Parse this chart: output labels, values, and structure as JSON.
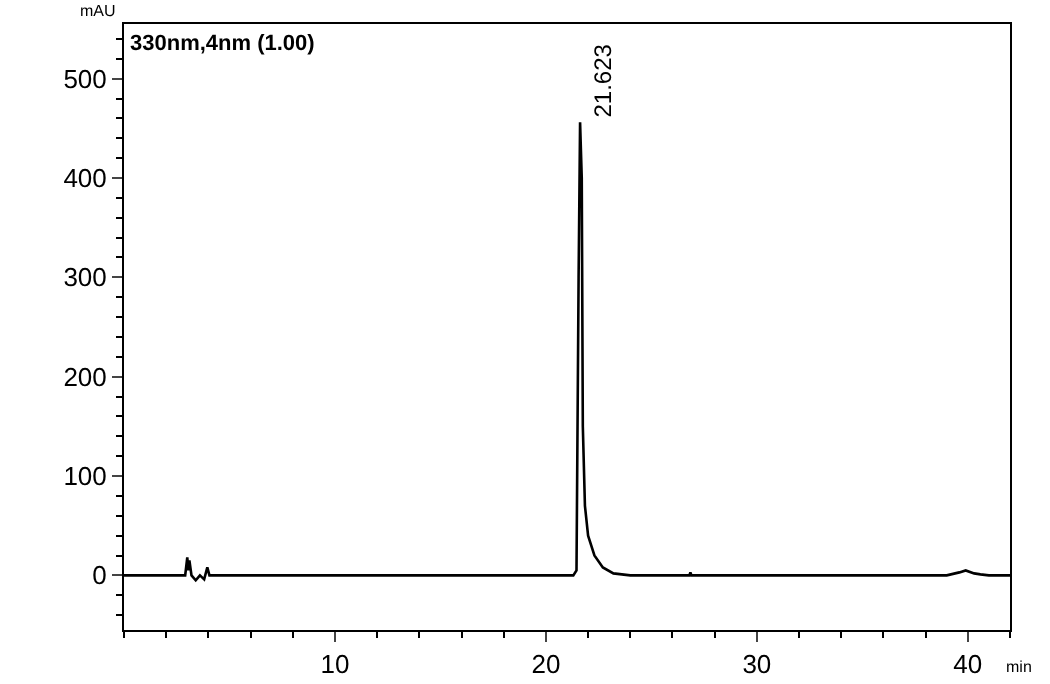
{
  "chart_data": {
    "type": "line",
    "xlabel": "min",
    "ylabel": "mAU",
    "annotations": [
      "330nm,4nm (1.00)",
      {
        "text": "21.623",
        "x": 21.623,
        "y": 456
      }
    ],
    "x": [
      0,
      2.9,
      3.0,
      3.05,
      3.1,
      3.2,
      3.4,
      3.6,
      3.8,
      3.95,
      4.05,
      21.3,
      21.45,
      21.55,
      21.62,
      21.7,
      21.75,
      21.85,
      22.0,
      22.3,
      22.7,
      23.2,
      24,
      26.8,
      26.85,
      26.9,
      39.0,
      39.6,
      39.9,
      40.3,
      40.6,
      41,
      42
    ],
    "series": [
      {
        "color": "#000000",
        "values": [
          0,
          0,
          18,
          5,
          15,
          0,
          -5,
          0,
          -4,
          8,
          0,
          0,
          5,
          300,
          456,
          400,
          150,
          70,
          40,
          20,
          8,
          2,
          0,
          0,
          3,
          0,
          0,
          3,
          5,
          2,
          1,
          0,
          0
        ]
      }
    ],
    "xlim": [
      0,
      42
    ],
    "xticks": [
      10,
      20,
      30,
      40
    ],
    "ylim": [
      -55,
      555
    ],
    "yticks": [
      0,
      100,
      200,
      300,
      400,
      500
    ],
    "marker": "none",
    "line_style": "solid"
  }
}
